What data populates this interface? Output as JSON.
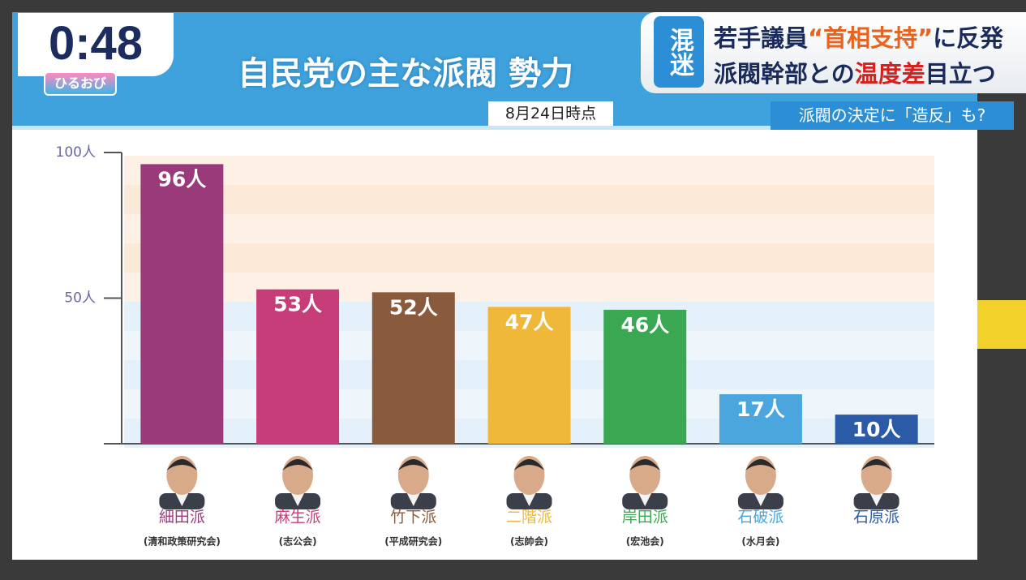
{
  "broadcast": {
    "clock": "0:48",
    "program": "ひるおび",
    "tag": "混迷",
    "headline": [
      [
        {
          "text": "若手議員",
          "color": "#1a2a5a"
        },
        {
          "text": "“首相支持”",
          "color": "#e8641e"
        },
        {
          "text": "に反発",
          "color": "#1a2a5a"
        }
      ],
      [
        {
          "text": "派閥幹部との",
          "color": "#1a2a5a"
        },
        {
          "text": "温度差",
          "color": "#d8201e"
        },
        {
          "text": "目立つ",
          "color": "#1a2a5a"
        }
      ]
    ],
    "subheadline": "派閥の決定に「造反」も?"
  },
  "chart_data": {
    "type": "bar",
    "title": "自民党の主な派閥 勢力",
    "subtitle": "8月24日時点",
    "categories": [
      "細田派",
      "麻生派",
      "竹下派",
      "二階派",
      "岸田派",
      "石破派",
      "石原派"
    ],
    "sublabels": [
      "(清和政策研究会)",
      "(志公会)",
      "(平成研究会)",
      "(志帥会)",
      "(宏池会)",
      "(水月会)",
      null
    ],
    "values": [
      96,
      53,
      52,
      47,
      46,
      17,
      10
    ],
    "value_labels": [
      "96人",
      "53人",
      "52人",
      "47人",
      "46人",
      "17人",
      "10人"
    ],
    "colors": [
      "#9a3a7a",
      "#c73d7a",
      "#8a5a3c",
      "#f0b838",
      "#3aa852",
      "#4aa6dc",
      "#2b5aa6"
    ],
    "ylim": [
      0,
      100
    ],
    "yticks": [
      {
        "value": 100,
        "label": "100人"
      },
      {
        "value": 50,
        "label": "50人"
      }
    ]
  }
}
